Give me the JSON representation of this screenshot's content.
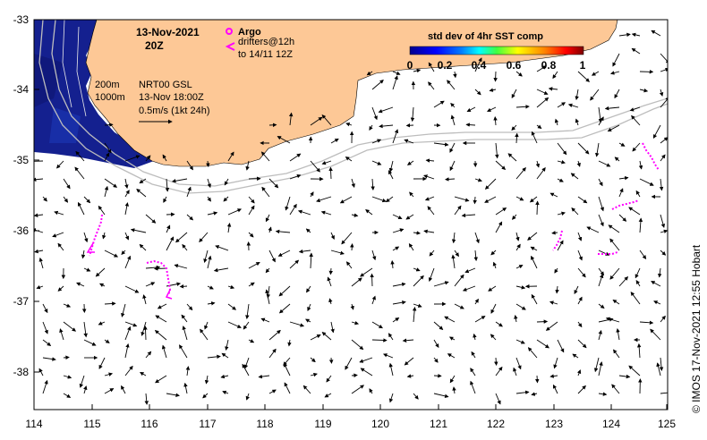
{
  "map": {
    "date_line": "13-Nov-2021",
    "time_line": "20Z",
    "legend": {
      "argo_label": "Argo",
      "drifters_label": "drifters@12h",
      "drifters_to_label": "to 14/11 12Z",
      "argo_color": "#ff00ff",
      "drifter_color": "#ff00ff"
    },
    "isobaths": {
      "shallow_label": "200m",
      "deep_label": "1000m"
    },
    "product": {
      "line1": "NRT00 GSL",
      "line2": "13-Nov 18:00Z",
      "scale_label": "0.5m/s (1kt 24h)"
    },
    "colorbar": {
      "title": "std dev of 4hr SST comp",
      "ticks": [
        "0",
        "0.2",
        "0.4",
        "0.6",
        "0.8",
        "1"
      ]
    },
    "credit": "© IMOS 17-Nov-2021 12:55 Hobart",
    "colors": {
      "land": "#fdc896",
      "ocean": "#ffffff",
      "sst_low": "#101a8a",
      "current_arrows": "#000000"
    }
  },
  "axes": {
    "x_ticks": [
      "114",
      "115",
      "116",
      "117",
      "118",
      "119",
      "120",
      "121",
      "122",
      "123",
      "124",
      "125"
    ],
    "y_ticks": [
      "-33",
      "-34",
      "-35",
      "-36",
      "-37",
      "-38"
    ]
  }
}
